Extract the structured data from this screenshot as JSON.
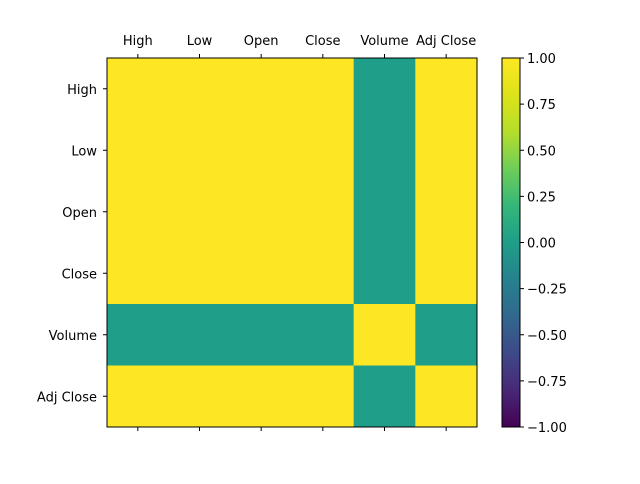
{
  "chart_data": {
    "type": "heatmap",
    "x_categories": [
      "High",
      "Low",
      "Open",
      "Close",
      "Volume",
      "Adj Close"
    ],
    "y_categories": [
      "High",
      "Low",
      "Open",
      "Close",
      "Volume",
      "Adj Close"
    ],
    "values": [
      [
        1.0,
        1.0,
        1.0,
        1.0,
        0.0,
        1.0
      ],
      [
        1.0,
        1.0,
        1.0,
        1.0,
        0.0,
        1.0
      ],
      [
        1.0,
        1.0,
        1.0,
        1.0,
        0.0,
        1.0
      ],
      [
        1.0,
        1.0,
        1.0,
        1.0,
        0.0,
        1.0
      ],
      [
        0.0,
        0.0,
        0.0,
        0.0,
        1.0,
        0.0
      ],
      [
        1.0,
        1.0,
        1.0,
        1.0,
        0.0,
        1.0
      ]
    ],
    "x_axis_position": "top",
    "colormap": "viridis",
    "colorbar": {
      "range": [
        -1.0,
        1.0
      ],
      "ticks": [
        1.0,
        0.75,
        0.5,
        0.25,
        0.0,
        -0.25,
        -0.5,
        -0.75,
        -1.0
      ],
      "tick_labels": [
        "1.00",
        "0.75",
        "0.50",
        "0.25",
        "0.00",
        "−0.25",
        "−0.50",
        "−0.75",
        "−1.00"
      ]
    }
  }
}
